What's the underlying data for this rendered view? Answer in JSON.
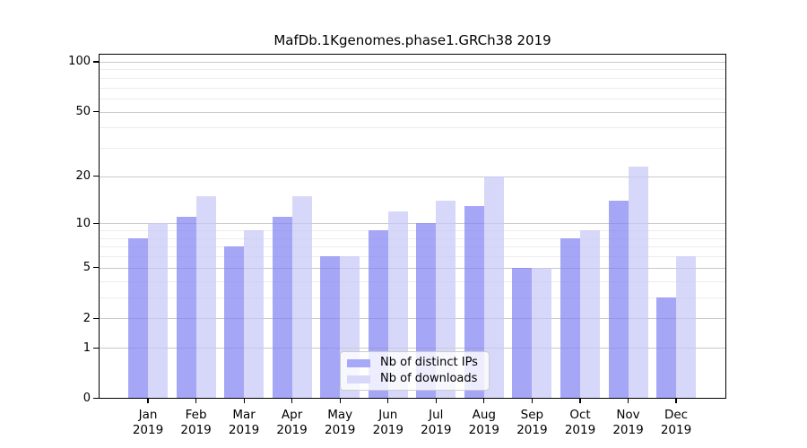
{
  "title": "MafDb.1Kgenomes.phase1.GRCh38 2019",
  "legend": {
    "items": [
      {
        "label": "Nb of distinct IPs",
        "color": "#a8a8f8"
      },
      {
        "label": "Nb of downloads",
        "color": "#d8d8fa"
      }
    ]
  },
  "y_axis": {
    "tick_labels": [
      "100",
      "50",
      "20",
      "10",
      "5",
      "2",
      "1",
      "0"
    ],
    "tick_values": [
      100,
      50,
      20,
      10,
      5,
      2,
      1,
      0
    ],
    "minor_gridline_values": [
      3,
      4,
      6,
      7,
      8,
      9,
      30,
      40,
      60,
      70,
      80,
      90
    ]
  },
  "x_axis": {
    "year": "2019",
    "months": [
      "Jan",
      "Feb",
      "Mar",
      "Apr",
      "May",
      "Jun",
      "Jul",
      "Aug",
      "Sep",
      "Oct",
      "Nov",
      "Dec"
    ]
  },
  "chart_data": {
    "type": "bar",
    "title": "MafDb.1Kgenomes.phase1.GRCh38 2019",
    "categories": [
      "Jan 2019",
      "Feb 2019",
      "Mar 2019",
      "Apr 2019",
      "May 2019",
      "Jun 2019",
      "Jul 2019",
      "Aug 2019",
      "Sep 2019",
      "Oct 2019",
      "Nov 2019",
      "Dec 2019"
    ],
    "series": [
      {
        "name": "Nb of distinct IPs",
        "color": "#a8a8f8",
        "rgba": "rgba(131,131,244,0.72)",
        "values": [
          8,
          11,
          7,
          11,
          6,
          9,
          10,
          13,
          5,
          8,
          14,
          3
        ]
      },
      {
        "name": "Nb of downloads",
        "color": "#d8d8fa",
        "rgba": "rgba(200,200,248,0.72)",
        "values": [
          10,
          15,
          9,
          15,
          6,
          12,
          14,
          20,
          5,
          9,
          23,
          6
        ]
      }
    ],
    "xlabel": "",
    "ylabel": "",
    "y_scale": "log10(value+1)",
    "ylim": [
      0,
      112
    ],
    "yticks": [
      0,
      1,
      2,
      5,
      10,
      20,
      50,
      100
    ],
    "grid": "horizontal, major + minor log gridlines",
    "legend_position": "bottom-center inside plot"
  }
}
